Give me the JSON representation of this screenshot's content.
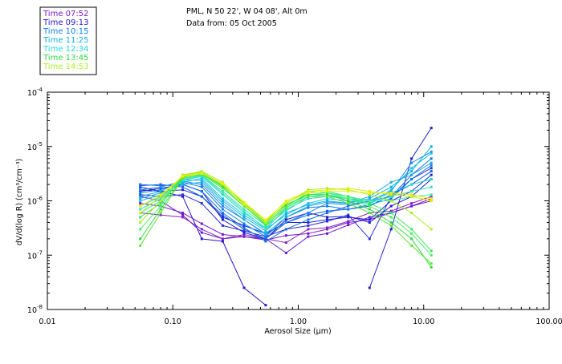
{
  "header": {
    "line1": "PML, N 50 22', W 04 08', Alt 0m",
    "line2": "Data from: 05 Oct 2005"
  },
  "colors": {
    "frame": "#000000",
    "background": "#ffffff"
  },
  "chart_data": {
    "type": "line",
    "xscale": "log",
    "yscale": "log",
    "xlim": [
      0.01,
      100
    ],
    "ylim": [
      1e-08,
      0.0001
    ],
    "xlabel": "Aerosol Size (µm)",
    "ylabel": "dV/d(log R) (cm³/cm⁻³)",
    "x_tick_labels": [
      "0.01",
      "0.10",
      "1.00",
      "10.00",
      "100.00"
    ],
    "x_tick_values": [
      0.01,
      0.1,
      1,
      10,
      100
    ],
    "y_tick_mantissa": "10",
    "y_tick_exponents": [
      "-8",
      "-7",
      "-6",
      "-5",
      "-4"
    ],
    "y_tick_values": [
      1e-08,
      1e-07,
      1e-06,
      1e-05,
      0.0001
    ],
    "legend_position": "top-left",
    "x": [
      0.055,
      0.08,
      0.12,
      0.17,
      0.25,
      0.37,
      0.55,
      0.8,
      1.2,
      1.7,
      2.5,
      3.7,
      5.5,
      8.0,
      11.5
    ],
    "series": [
      {
        "name": "Time 07:52",
        "color": "#7a18c8",
        "values": [
          9e-07,
          8e-07,
          6e-07,
          3.8e-07,
          2.4e-07,
          2.2e-07,
          1.9e-07,
          2.3e-07,
          2.5e-07,
          3e-07,
          4e-07,
          4.5e-07,
          6e-07,
          8e-07,
          1e-06
        ]
      },
      {
        "name": "Time 07:52",
        "color": "#6a1cd0",
        "values": [
          1.2e-06,
          1e-06,
          5.5e-07,
          2.6e-07,
          2e-07,
          2.2e-07,
          2e-07,
          1.1e-07,
          2.2e-07,
          2.5e-07,
          3.6e-07,
          5e-07,
          6e-07,
          8e-07,
          1.1e-06
        ]
      },
      {
        "name": "Time 07:52",
        "color": "#8a24c0",
        "values": [
          6e-07,
          5.5e-07,
          5e-07,
          3e-07,
          2e-07,
          2.4e-07,
          2e-07,
          1.7e-07,
          3e-07,
          3.2e-07,
          4.2e-07,
          6e-07,
          6.5e-07,
          9e-07,
          1.2e-06
        ]
      },
      {
        "name": "Time 09:13",
        "color": "#3014c8",
        "values": [
          1.6e-06,
          1.5e-06,
          1.2e-06,
          2e-07,
          1.8e-07,
          2.5e-08,
          1.2e-08,
          null,
          null,
          null,
          null,
          null,
          null,
          null,
          null
        ]
      },
      {
        "name": "Time 09:13",
        "color": "#2020d0",
        "values": [
          null,
          null,
          null,
          null,
          null,
          null,
          null,
          null,
          null,
          null,
          null,
          2.5e-08,
          3e-07,
          6e-06,
          2.2e-05
        ]
      },
      {
        "name": "Time 09:13",
        "color": "#1a28d8",
        "values": [
          1.8e-06,
          1.5e-06,
          1.6e-06,
          1.2e-06,
          5e-07,
          3.5e-07,
          2.5e-07,
          4e-07,
          4e-07,
          4.5e-07,
          5e-07,
          4.5e-07,
          1e-06,
          1.5e-06,
          3e-06
        ]
      },
      {
        "name": "Time 09:13",
        "color": "#2a30d8",
        "values": [
          1.3e-06,
          1.2e-06,
          1.3e-06,
          9e-07,
          3.5e-07,
          2.8e-07,
          2.2e-07,
          3e-07,
          3.5e-07,
          4.2e-07,
          5.5e-07,
          2e-07,
          1.2e-06,
          2.5e-06,
          4e-06
        ]
      },
      {
        "name": "Time 09:13",
        "color": "#2418c8",
        "values": [
          1.5e-06,
          1.7e-06,
          2e-06,
          1.5e-06,
          4.5e-07,
          2.6e-07,
          2e-07,
          4.5e-07,
          6e-07,
          5e-07,
          5.2e-07,
          4e-07,
          8e-07,
          1.2e-06,
          2.5e-06
        ]
      },
      {
        "name": "Time 10:15",
        "color": "#1060e0",
        "values": [
          1.9e-06,
          2e-06,
          1.8e-06,
          1.2e-06,
          5.5e-07,
          3e-07,
          2e-07,
          4e-07,
          5.5e-07,
          6.5e-07,
          7e-07,
          8e-07,
          1.3e-06,
          2e-06,
          3.5e-06
        ]
      },
      {
        "name": "Time 10:15",
        "color": "#1870e8",
        "values": [
          2e-06,
          1.9e-06,
          2e-06,
          1.5e-06,
          6e-07,
          3.2e-07,
          1.8e-07,
          3e-07,
          4.5e-07,
          6e-07,
          8e-07,
          1e-06,
          1.2e-06,
          3e-06,
          6e-06
        ]
      },
      {
        "name": "Time 10:15",
        "color": "#0a80e8",
        "values": [
          1.4e-06,
          1.6e-06,
          2.2e-06,
          1.8e-06,
          7e-07,
          3.8e-07,
          2.2e-07,
          5e-07,
          7.5e-07,
          8e-07,
          7e-07,
          8.5e-07,
          1.1e-06,
          2.5e-06,
          4.5e-06
        ]
      },
      {
        "name": "Time 10:15",
        "color": "#2088f0",
        "values": [
          1.6e-06,
          1.8e-06,
          2.3e-06,
          2e-06,
          8e-07,
          4.5e-07,
          2.4e-07,
          4e-07,
          6e-07,
          9e-07,
          8.5e-07,
          1e-06,
          1.5e-06,
          5e-06,
          8e-06
        ]
      },
      {
        "name": "Time 11:25",
        "color": "#10b0e0",
        "values": [
          1.2e-06,
          1.5e-06,
          2.4e-06,
          2.4e-06,
          1e-06,
          5e-07,
          2.8e-07,
          6e-07,
          8.5e-07,
          1e-06,
          9e-07,
          1.1e-06,
          1.8e-06,
          3.5e-06,
          1e-05
        ]
      },
      {
        "name": "Time 11:25",
        "color": "#18c0e8",
        "values": [
          1e-06,
          1.3e-06,
          2.2e-06,
          2.6e-06,
          1.1e-06,
          5.5e-07,
          3e-07,
          5.5e-07,
          9e-07,
          1.1e-06,
          1e-06,
          9e-07,
          1.6e-06,
          4e-06,
          7.5e-06
        ]
      },
      {
        "name": "Time 11:25",
        "color": "#20a8e0",
        "values": [
          1.1e-06,
          1.4e-06,
          2e-06,
          2.2e-06,
          9e-07,
          4.5e-07,
          2.5e-07,
          5e-07,
          8e-07,
          9.5e-07,
          9e-07,
          1.2e-06,
          2.2e-06,
          3e-06,
          5e-06
        ]
      },
      {
        "name": "Time 12:34",
        "color": "#20d8d0",
        "values": [
          8e-07,
          1.2e-06,
          2.4e-06,
          2.8e-06,
          1.3e-06,
          6e-07,
          3.2e-07,
          7e-07,
          1.1e-06,
          1.2e-06,
          1.1e-06,
          1e-06,
          1.4e-06,
          2e-06,
          2.5e-06
        ]
      },
      {
        "name": "Time 12:34",
        "color": "#30e0c0",
        "values": [
          7e-07,
          1.1e-06,
          2.6e-06,
          3e-06,
          1.5e-06,
          7e-07,
          3.5e-07,
          6.5e-07,
          1.2e-06,
          1.3e-06,
          1.1e-06,
          9e-07,
          1.2e-06,
          1.5e-06,
          1.8e-06
        ]
      },
      {
        "name": "Time 12:34",
        "color": "#40e8b0",
        "values": [
          6e-07,
          1e-06,
          2.5e-06,
          2.9e-06,
          1.4e-06,
          6.5e-07,
          3e-07,
          7.5e-07,
          1.3e-06,
          1.4e-06,
          1.2e-06,
          1e-06,
          1e-06,
          1.2e-06,
          1.3e-06
        ]
      },
      {
        "name": "Time 13:45",
        "color": "#38e858",
        "values": [
          5e-07,
          9e-07,
          2.8e-06,
          3.2e-06,
          1.8e-06,
          8e-07,
          3.8e-07,
          8e-07,
          1.4e-06,
          1.5e-06,
          1.2e-06,
          9e-07,
          6e-07,
          3e-07,
          1.2e-07
        ]
      },
      {
        "name": "Time 13:45",
        "color": "#48f060",
        "values": [
          3e-07,
          8e-07,
          3e-06,
          3.4e-06,
          2e-06,
          8.5e-07,
          4e-07,
          9e-07,
          1.5e-06,
          1.4e-06,
          1.1e-06,
          8e-07,
          5e-07,
          2.5e-07,
          1e-07
        ]
      },
      {
        "name": "Time 13:45",
        "color": "#30d840",
        "values": [
          2e-07,
          7e-07,
          2.7e-06,
          3.3e-06,
          1.9e-06,
          9e-07,
          4.2e-07,
          8.5e-07,
          1.3e-06,
          1.3e-06,
          1e-06,
          7e-07,
          4e-07,
          2e-07,
          6e-08
        ]
      },
      {
        "name": "Time 13:45",
        "color": "#58e830",
        "values": [
          1.5e-07,
          6e-07,
          2.6e-06,
          3.1e-06,
          1.7e-06,
          8e-07,
          3.6e-07,
          7.5e-07,
          1.2e-06,
          1.2e-06,
          9e-07,
          6e-07,
          3.5e-07,
          1.5e-07,
          7e-08
        ]
      },
      {
        "name": "Time 14:53",
        "color": "#a8f020",
        "values": [
          4e-07,
          1e-06,
          3e-06,
          3.5e-06,
          2.2e-06,
          9e-07,
          4e-07,
          9e-07,
          1.6e-06,
          1.7e-06,
          1.6e-06,
          1.3e-06,
          1e-06,
          6e-07,
          3e-07
        ]
      },
      {
        "name": "Time 14:53",
        "color": "#d8f000",
        "values": [
          6e-07,
          1.2e-06,
          2.9e-06,
          3.3e-06,
          2e-06,
          8.5e-07,
          4.2e-07,
          1e-06,
          1.5e-06,
          1.6e-06,
          1.7e-06,
          1.5e-06,
          1.3e-06,
          1.2e-06,
          1e-06
        ]
      },
      {
        "name": "Time 14:53",
        "color": "#f0f000",
        "values": [
          8e-07,
          1.3e-06,
          2.8e-06,
          3.2e-06,
          2.1e-06,
          9.5e-07,
          4.5e-07,
          9.5e-07,
          1.4e-06,
          1.5e-06,
          1.5e-06,
          1.4e-06,
          1.4e-06,
          1.3e-06,
          1.1e-06
        ]
      }
    ],
    "legend": [
      {
        "label": "Time 07:52",
        "color": "#7a18c8"
      },
      {
        "label": "Time 09:13",
        "color": "#2418c8"
      },
      {
        "label": "Time 10:15",
        "color": "#0a80e8"
      },
      {
        "label": "Time 11:25",
        "color": "#10b0e0"
      },
      {
        "label": "Time 12:34",
        "color": "#20d8d0"
      },
      {
        "label": "Time 13:45",
        "color": "#30d840"
      },
      {
        "label": "Time 14:53",
        "color": "#a8f020"
      }
    ]
  }
}
